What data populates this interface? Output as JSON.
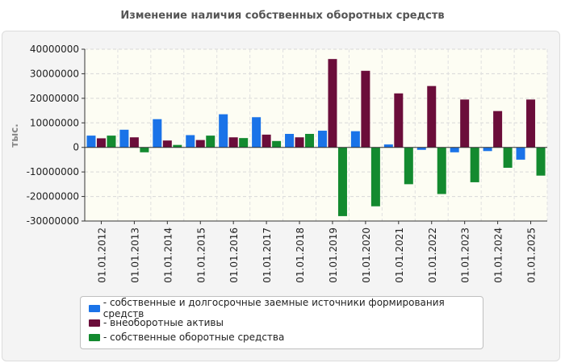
{
  "chart_data": {
    "type": "bar",
    "title": "Изменение наличия собственных оборотных средств",
    "ylabel": "тыс.",
    "xlabel": "",
    "ylim": [
      -30000000,
      40000000
    ],
    "yticks": [
      40000000,
      30000000,
      20000000,
      10000000,
      0,
      -10000000,
      -20000000,
      -30000000
    ],
    "grid": true,
    "legend_position": "bottom",
    "categories": [
      "01.01.2012",
      "01.01.2013",
      "01.01.2014",
      "01.01.2015",
      "01.01.2016",
      "01.01.2017",
      "01.01.2018",
      "01.01.2019",
      "01.01.2020",
      "01.01.2021",
      "01.01.2022",
      "01.01.2023",
      "01.01.2024",
      "01.01.2025"
    ],
    "series": [
      {
        "name": "собственные и долгосрочные заемные источники формирования средств",
        "legend_label": "- собственные и долгосрочные заемные источники формирования средств",
        "color": "#1a73e8",
        "values": [
          4800000,
          7200000,
          11500000,
          5000000,
          13500000,
          12300000,
          5500000,
          6800000,
          6600000,
          1200000,
          -1000000,
          -2000000,
          -1500000,
          -5000000
        ]
      },
      {
        "name": "внеоборотные активы",
        "legend_label": "- внеоборотные активы",
        "color": "#6b0d3a",
        "values": [
          3700000,
          4100000,
          2800000,
          3000000,
          4100000,
          5200000,
          4100000,
          36000000,
          31200000,
          22000000,
          25000000,
          19500000,
          14800000,
          19500000
        ]
      },
      {
        "name": "собственные оборотные средства",
        "legend_label": "- собственные оборотные средства",
        "color": "#138a2f",
        "values": [
          4800000,
          -2000000,
          1000000,
          4800000,
          3800000,
          2600000,
          5500000,
          -28000000,
          -24000000,
          -15000000,
          -19000000,
          -14200000,
          -8300000,
          -11500000
        ]
      }
    ]
  }
}
